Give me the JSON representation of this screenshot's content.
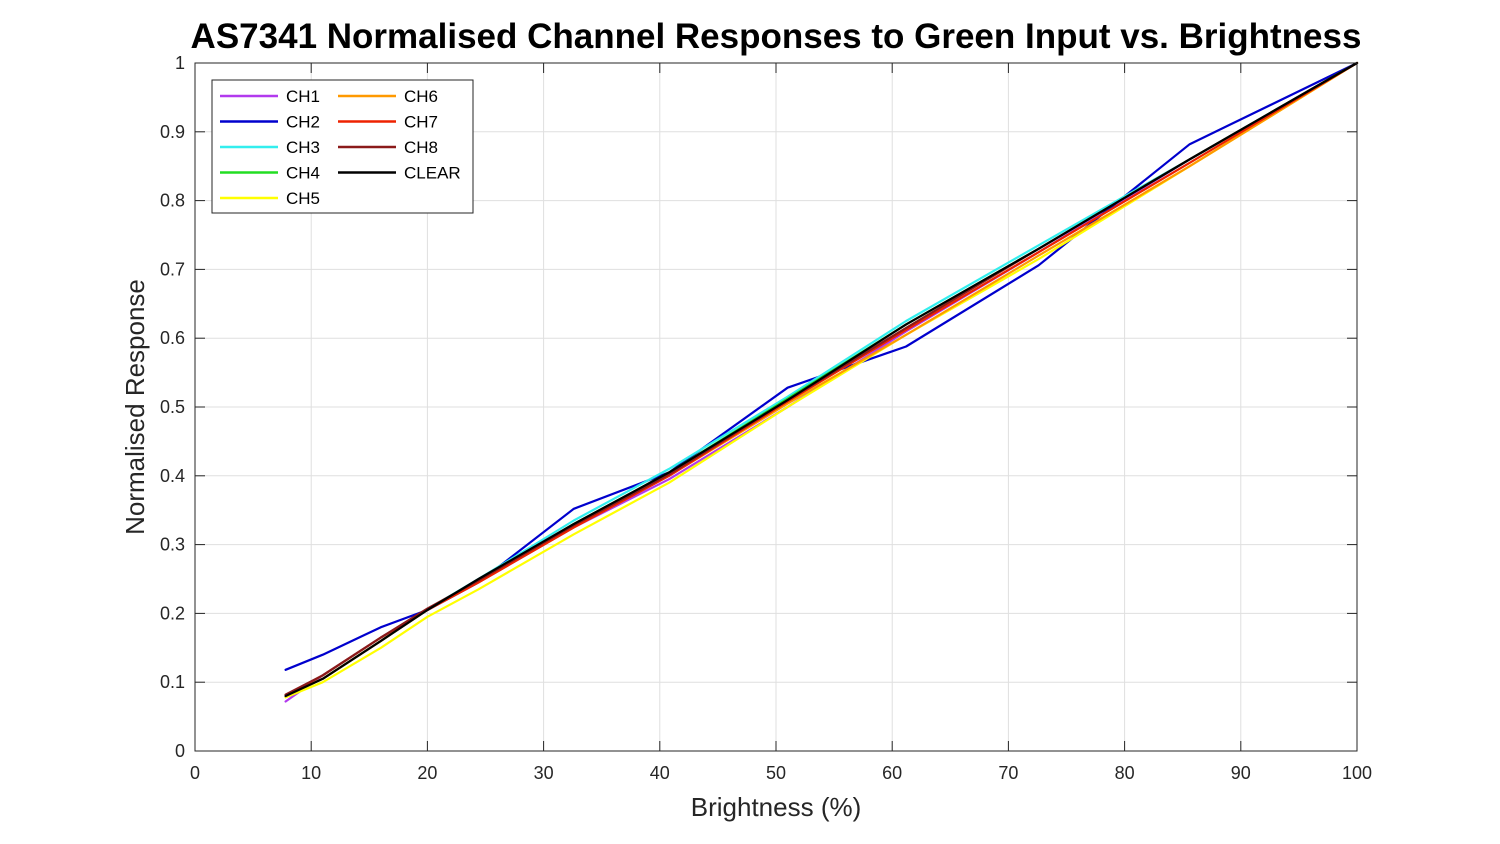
{
  "chart_data": {
    "type": "line",
    "title": "AS7341 Normalised Channel Responses to Green Input vs. Brightness",
    "xlabel": "Brightness (%)",
    "ylabel": "Normalised Response",
    "xlim": [
      0,
      100
    ],
    "ylim": [
      0,
      1
    ],
    "xticks": [
      "0",
      "10",
      "20",
      "30",
      "40",
      "50",
      "60",
      "70",
      "80",
      "90",
      "100"
    ],
    "yticks": [
      "0",
      "0.1",
      "0.2",
      "0.3",
      "0.4",
      "0.5",
      "0.6",
      "0.7",
      "0.8",
      "0.9",
      "1"
    ],
    "grid": true,
    "legend_position": "top-left",
    "x": [
      7.8,
      11,
      16,
      20,
      24.4,
      32.6,
      40.8,
      51,
      61.2,
      72.6,
      85.6,
      100
    ],
    "series": [
      {
        "name": "CH1",
        "color": "#b23aee",
        "values": [
          0.072,
          0.11,
          0.165,
          0.205,
          0.245,
          0.325,
          0.395,
          0.5,
          0.61,
          0.725,
          0.86,
          1.0
        ]
      },
      {
        "name": "CH2",
        "color": "#0000cd",
        "values": [
          0.118,
          0.14,
          0.18,
          0.205,
          0.245,
          0.352,
          0.405,
          0.528,
          0.588,
          0.706,
          0.882,
          1.0
        ]
      },
      {
        "name": "CH3",
        "color": "#33eeee",
        "values": [
          0.08,
          0.11,
          0.165,
          0.206,
          0.25,
          0.335,
          0.41,
          0.515,
          0.625,
          0.735,
          0.86,
          1.0
        ]
      },
      {
        "name": "CH4",
        "color": "#22dd22",
        "values": [
          0.08,
          0.105,
          0.16,
          0.205,
          0.248,
          0.33,
          0.405,
          0.512,
          0.62,
          0.73,
          0.86,
          1.0
        ]
      },
      {
        "name": "CH5",
        "color": "#ffff00",
        "values": [
          0.078,
          0.1,
          0.15,
          0.195,
          0.235,
          0.315,
          0.39,
          0.5,
          0.605,
          0.715,
          0.85,
          1.0
        ]
      },
      {
        "name": "CH6",
        "color": "#ff9900",
        "values": [
          0.08,
          0.105,
          0.16,
          0.205,
          0.245,
          0.325,
          0.4,
          0.505,
          0.605,
          0.72,
          0.85,
          1.0
        ]
      },
      {
        "name": "CH7",
        "color": "#ee2200",
        "values": [
          0.08,
          0.11,
          0.165,
          0.205,
          0.245,
          0.325,
          0.4,
          0.508,
          0.612,
          0.725,
          0.855,
          1.0
        ]
      },
      {
        "name": "CH8",
        "color": "#8b1a1a",
        "values": [
          0.082,
          0.11,
          0.165,
          0.207,
          0.248,
          0.328,
          0.402,
          0.51,
          0.615,
          0.73,
          0.86,
          1.0
        ]
      },
      {
        "name": "CLEAR",
        "color": "#000000",
        "values": [
          0.08,
          0.105,
          0.16,
          0.205,
          0.25,
          0.33,
          0.405,
          0.51,
          0.62,
          0.73,
          0.86,
          1.0
        ]
      }
    ]
  }
}
